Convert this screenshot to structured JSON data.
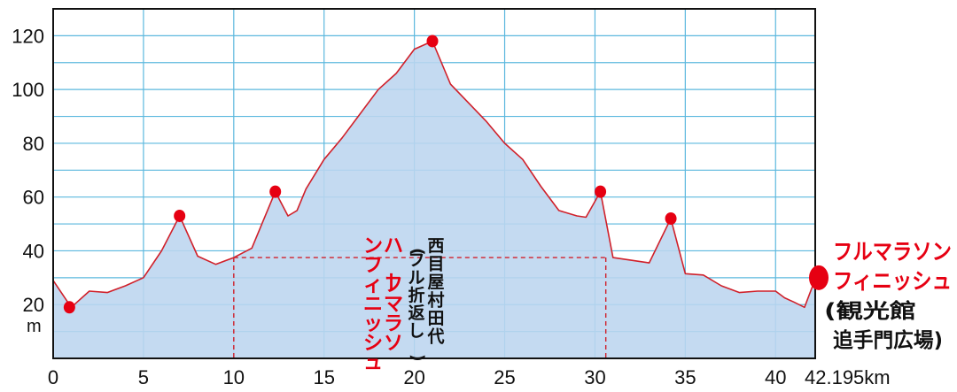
{
  "chart_data": {
    "type": "area",
    "x": [
      0,
      1,
      2,
      3,
      4,
      5,
      6,
      7,
      8,
      9,
      10,
      11,
      12.3,
      13,
      13.5,
      14,
      15,
      16,
      17,
      18,
      19,
      20,
      21,
      22,
      23,
      24,
      25,
      26,
      27,
      28,
      29,
      29.5,
      30.3,
      31,
      32,
      33,
      34.2,
      35,
      36,
      37,
      38,
      39,
      40,
      40.5,
      41,
      41.6,
      42.195
    ],
    "y": [
      29,
      19,
      25,
      24.5,
      27,
      30,
      40,
      53,
      38,
      35,
      37.5,
      41,
      62,
      53,
      55,
      63,
      74,
      82,
      91,
      100,
      106,
      115,
      118,
      102,
      95,
      88,
      80,
      74,
      64,
      55,
      53,
      52.5,
      62,
      37.5,
      36.5,
      35.5,
      52,
      31.5,
      31,
      27,
      24.5,
      25,
      25,
      22.5,
      21,
      19,
      29.5
    ],
    "highlights": [
      {
        "x": 0.9,
        "y": 19
      },
      {
        "x": 7.0,
        "y": 53
      },
      {
        "x": 12.3,
        "y": 62
      },
      {
        "x": 21.0,
        "y": 118
      },
      {
        "x": 30.3,
        "y": 62
      },
      {
        "x": 34.2,
        "y": 52
      }
    ],
    "finish_marker": {
      "x": 42.195,
      "y": 30
    },
    "half_marathon_line": {
      "y": 37.5,
      "x_start": 10,
      "x_end": 30.6
    },
    "x_ticks": [
      "0",
      "5",
      "10",
      "15",
      "20",
      "25",
      "30",
      "35",
      "40"
    ],
    "x_tick_values": [
      0,
      5,
      10,
      15,
      20,
      25,
      30,
      35,
      40
    ],
    "x_end_label": "42.195km",
    "y_ticks": [
      "20",
      "40",
      "60",
      "80",
      "100",
      "120"
    ],
    "y_tick_values": [
      20,
      40,
      60,
      80,
      100,
      120
    ],
    "ylabel": "m",
    "xlim": [
      0,
      42.195
    ],
    "ylim": [
      0,
      130
    ],
    "grid": true,
    "colors": {
      "fill": "#bcd5ef",
      "line": "#d0202a",
      "grid": "#5cb8de",
      "marker": "#e60012"
    },
    "annotations": {
      "half_finish": "ハーフマラソンフィニッシュ",
      "turnaround": "西目屋村田代(フル折返し)",
      "full_finish_line1": "フルマラソン",
      "full_finish_line2": "フィニッシュ",
      "full_finish_place1": "(観光館",
      "full_finish_place2": "追手門広場)"
    }
  }
}
